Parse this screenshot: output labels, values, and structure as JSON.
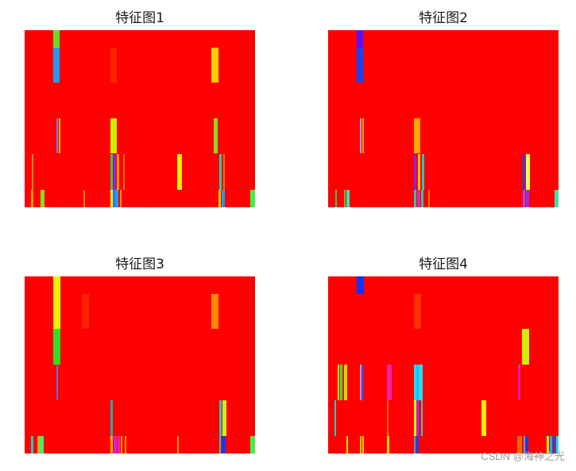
{
  "page": {
    "watermark": "CSDN @海神之光"
  },
  "chart_data": [
    {
      "type": "heatmap",
      "title": "特征图1",
      "xlim": [
        0,
        290
      ],
      "ylim": [
        0,
        223
      ],
      "background": "#ff0000",
      "cells": [
        {
          "x": 36,
          "y": 0,
          "w": 8,
          "h": 22,
          "c": "#66dd22"
        },
        {
          "x": 36,
          "y": 22,
          "w": 8,
          "h": 44,
          "c": "#2299ee"
        },
        {
          "x": 108,
          "y": 22,
          "w": 8,
          "h": 44,
          "c": "#ff2200"
        },
        {
          "x": 235,
          "y": 22,
          "w": 9,
          "h": 44,
          "c": "#ffcc00"
        },
        {
          "x": 40,
          "y": 111,
          "w": 2,
          "h": 44,
          "c": "#7777ff"
        },
        {
          "x": 43,
          "y": 111,
          "w": 2,
          "h": 44,
          "c": "#ffbb00"
        },
        {
          "x": 108,
          "y": 111,
          "w": 8,
          "h": 44,
          "c": "#ccee00"
        },
        {
          "x": 238,
          "y": 111,
          "w": 5,
          "h": 44,
          "c": "#88dd22"
        },
        {
          "x": 9,
          "y": 156,
          "w": 2,
          "h": 45,
          "c": "#ff8800"
        },
        {
          "x": 108,
          "y": 156,
          "w": 3,
          "h": 45,
          "c": "#22cc66"
        },
        {
          "x": 112,
          "y": 156,
          "w": 3,
          "h": 45,
          "c": "#8822ee"
        },
        {
          "x": 116,
          "y": 156,
          "w": 3,
          "h": 45,
          "c": "#ff9900"
        },
        {
          "x": 124,
          "y": 156,
          "w": 2,
          "h": 45,
          "c": "#ff6600"
        },
        {
          "x": 192,
          "y": 156,
          "w": 6,
          "h": 45,
          "c": "#ffee00"
        },
        {
          "x": 245,
          "y": 156,
          "w": 3,
          "h": 45,
          "c": "#22ccaa"
        },
        {
          "x": 250,
          "y": 156,
          "w": 2,
          "h": 45,
          "c": "#ff7700"
        },
        {
          "x": 8,
          "y": 201,
          "w": 3,
          "h": 22,
          "c": "#ff9900"
        },
        {
          "x": 20,
          "y": 201,
          "w": 5,
          "h": 22,
          "c": "#88dd22"
        },
        {
          "x": 74,
          "y": 201,
          "w": 2,
          "h": 22,
          "c": "#ff8800"
        },
        {
          "x": 108,
          "y": 201,
          "w": 3,
          "h": 22,
          "c": "#ffee00"
        },
        {
          "x": 111,
          "y": 201,
          "w": 3,
          "h": 22,
          "c": "#2277ff"
        },
        {
          "x": 114,
          "y": 201,
          "w": 4,
          "h": 22,
          "c": "#2299ff"
        },
        {
          "x": 120,
          "y": 201,
          "w": 2,
          "h": 22,
          "c": "#ff8800"
        },
        {
          "x": 244,
          "y": 201,
          "w": 3,
          "h": 22,
          "c": "#ffcc00"
        },
        {
          "x": 248,
          "y": 201,
          "w": 4,
          "h": 22,
          "c": "#2299ee"
        },
        {
          "x": 284,
          "y": 201,
          "w": 6,
          "h": 22,
          "c": "#44ee44"
        }
      ]
    },
    {
      "type": "heatmap",
      "title": "特征图2",
      "xlim": [
        0,
        290
      ],
      "ylim": [
        0,
        223
      ],
      "background": "#ff0000",
      "cells": [
        {
          "x": 36,
          "y": 0,
          "w": 8,
          "h": 22,
          "c": "#5511ff"
        },
        {
          "x": 36,
          "y": 22,
          "w": 8,
          "h": 44,
          "c": "#1144ff"
        },
        {
          "x": 40,
          "y": 111,
          "w": 2,
          "h": 44,
          "c": "#aaaaff"
        },
        {
          "x": 43,
          "y": 111,
          "w": 2,
          "h": 44,
          "c": "#ff9900"
        },
        {
          "x": 108,
          "y": 111,
          "w": 8,
          "h": 44,
          "c": "#ffaa00"
        },
        {
          "x": 108,
          "y": 156,
          "w": 3,
          "h": 45,
          "c": "#8822ee"
        },
        {
          "x": 113,
          "y": 156,
          "w": 3,
          "h": 45,
          "c": "#ffcc00"
        },
        {
          "x": 118,
          "y": 156,
          "w": 3,
          "h": 45,
          "c": "#22cccc"
        },
        {
          "x": 245,
          "y": 156,
          "w": 3,
          "h": 45,
          "c": "#2244ee"
        },
        {
          "x": 249,
          "y": 156,
          "w": 5,
          "h": 45,
          "c": "#eeff44"
        },
        {
          "x": 9,
          "y": 201,
          "w": 2,
          "h": 22,
          "c": "#22cc66"
        },
        {
          "x": 20,
          "y": 201,
          "w": 2,
          "h": 22,
          "c": "#44cc44"
        },
        {
          "x": 23,
          "y": 201,
          "w": 4,
          "h": 22,
          "c": "#44ddbb"
        },
        {
          "x": 108,
          "y": 201,
          "w": 3,
          "h": 22,
          "c": "#22ccaa"
        },
        {
          "x": 112,
          "y": 201,
          "w": 4,
          "h": 22,
          "c": "#ee22aa"
        },
        {
          "x": 117,
          "y": 201,
          "w": 3,
          "h": 22,
          "c": "#22ccaa"
        },
        {
          "x": 126,
          "y": 201,
          "w": 2,
          "h": 22,
          "c": "#ff7700"
        },
        {
          "x": 245,
          "y": 201,
          "w": 3,
          "h": 22,
          "c": "#aa44ee"
        },
        {
          "x": 249,
          "y": 201,
          "w": 4,
          "h": 22,
          "c": "#8833ee"
        },
        {
          "x": 285,
          "y": 201,
          "w": 5,
          "h": 22,
          "c": "#44ddaa"
        }
      ]
    },
    {
      "type": "heatmap",
      "title": "特征图3",
      "xlim": [
        0,
        290
      ],
      "ylim": [
        0,
        223
      ],
      "background": "#ff0000",
      "cells": [
        {
          "x": 36,
          "y": 0,
          "w": 9,
          "h": 66,
          "c": "#eeee00"
        },
        {
          "x": 36,
          "y": 66,
          "w": 9,
          "h": 45,
          "c": "#33dd22"
        },
        {
          "x": 72,
          "y": 22,
          "w": 9,
          "h": 44,
          "c": "#ff2200"
        },
        {
          "x": 235,
          "y": 22,
          "w": 9,
          "h": 44,
          "c": "#ff8800"
        },
        {
          "x": 40,
          "y": 111,
          "w": 2,
          "h": 44,
          "c": "#6666ee"
        },
        {
          "x": 108,
          "y": 156,
          "w": 3,
          "h": 45,
          "c": "#22aaaa"
        },
        {
          "x": 245,
          "y": 156,
          "w": 3,
          "h": 45,
          "c": "#22ccaa"
        },
        {
          "x": 249,
          "y": 156,
          "w": 5,
          "h": 45,
          "c": "#ccee22"
        },
        {
          "x": 8,
          "y": 201,
          "w": 3,
          "h": 22,
          "c": "#22cccc"
        },
        {
          "x": 16,
          "y": 201,
          "w": 2,
          "h": 22,
          "c": "#ff9900"
        },
        {
          "x": 18,
          "y": 201,
          "w": 6,
          "h": 22,
          "c": "#44ee66"
        },
        {
          "x": 108,
          "y": 201,
          "w": 3,
          "h": 22,
          "c": "#ffaa00"
        },
        {
          "x": 112,
          "y": 201,
          "w": 4,
          "h": 22,
          "c": "#cc22ee"
        },
        {
          "x": 117,
          "y": 201,
          "w": 3,
          "h": 22,
          "c": "#ee22aa"
        },
        {
          "x": 121,
          "y": 201,
          "w": 2,
          "h": 22,
          "c": "#ff9900"
        },
        {
          "x": 126,
          "y": 201,
          "w": 2,
          "h": 22,
          "c": "#ff9900"
        },
        {
          "x": 192,
          "y": 201,
          "w": 2,
          "h": 22,
          "c": "#ff9900"
        },
        {
          "x": 245,
          "y": 201,
          "w": 2,
          "h": 22,
          "c": "#22ccaa"
        },
        {
          "x": 248,
          "y": 201,
          "w": 5,
          "h": 22,
          "c": "#2233ee"
        },
        {
          "x": 284,
          "y": 201,
          "w": 6,
          "h": 22,
          "c": "#44ee44"
        }
      ]
    },
    {
      "type": "heatmap",
      "title": "特征图4",
      "xlim": [
        0,
        290
      ],
      "ylim": [
        0,
        223
      ],
      "background": "#ff0000",
      "cells": [
        {
          "x": 36,
          "y": 0,
          "w": 9,
          "h": 22,
          "c": "#1133ff"
        },
        {
          "x": 108,
          "y": 22,
          "w": 9,
          "h": 44,
          "c": "#ff3300"
        },
        {
          "x": 244,
          "y": 66,
          "w": 9,
          "h": 45,
          "c": "#ccee11"
        },
        {
          "x": 12,
          "y": 111,
          "w": 2,
          "h": 45,
          "c": "#eeee00"
        },
        {
          "x": 15,
          "y": 111,
          "w": 3,
          "h": 45,
          "c": "#44dd44"
        },
        {
          "x": 20,
          "y": 111,
          "w": 4,
          "h": 45,
          "c": "#ccdd00"
        },
        {
          "x": 40,
          "y": 111,
          "w": 2,
          "h": 45,
          "c": "#aaaaff"
        },
        {
          "x": 43,
          "y": 111,
          "w": 2,
          "h": 45,
          "c": "#4444ee"
        },
        {
          "x": 74,
          "y": 111,
          "w": 6,
          "h": 45,
          "c": "#ee22aa"
        },
        {
          "x": 108,
          "y": 111,
          "w": 3,
          "h": 45,
          "c": "#22ddee"
        },
        {
          "x": 111,
          "y": 111,
          "w": 3,
          "h": 45,
          "c": "#22bbee"
        },
        {
          "x": 114,
          "y": 111,
          "w": 5,
          "h": 45,
          "c": "#22ddee"
        },
        {
          "x": 239,
          "y": 111,
          "w": 3,
          "h": 45,
          "c": "#ee22aa"
        },
        {
          "x": 8,
          "y": 156,
          "w": 2,
          "h": 45,
          "c": "#22cccc"
        },
        {
          "x": 74,
          "y": 156,
          "w": 2,
          "h": 45,
          "c": "#ff7700"
        },
        {
          "x": 108,
          "y": 156,
          "w": 3,
          "h": 45,
          "c": "#ffee00"
        },
        {
          "x": 111,
          "y": 156,
          "w": 3,
          "h": 45,
          "c": "#aa22ee"
        },
        {
          "x": 117,
          "y": 156,
          "w": 2,
          "h": 45,
          "c": "#22cccc"
        },
        {
          "x": 193,
          "y": 156,
          "w": 6,
          "h": 45,
          "c": "#ffee00"
        },
        {
          "x": 23,
          "y": 201,
          "w": 2,
          "h": 22,
          "c": "#ccee00"
        },
        {
          "x": 40,
          "y": 201,
          "w": 2,
          "h": 22,
          "c": "#ffcc00"
        },
        {
          "x": 43,
          "y": 201,
          "w": 2,
          "h": 22,
          "c": "#ffcc00"
        },
        {
          "x": 74,
          "y": 201,
          "w": 3,
          "h": 22,
          "c": "#ffdd00"
        },
        {
          "x": 108,
          "y": 201,
          "w": 2,
          "h": 22,
          "c": "#22aaee"
        },
        {
          "x": 111,
          "y": 201,
          "w": 3,
          "h": 22,
          "c": "#1144ee"
        },
        {
          "x": 238,
          "y": 201,
          "w": 6,
          "h": 22,
          "c": "#ff6600"
        },
        {
          "x": 246,
          "y": 201,
          "w": 2,
          "h": 22,
          "c": "#22bbee"
        },
        {
          "x": 249,
          "y": 201,
          "w": 3,
          "h": 22,
          "c": "#2233ee"
        },
        {
          "x": 275,
          "y": 201,
          "w": 3,
          "h": 22,
          "c": "#ccee22"
        },
        {
          "x": 279,
          "y": 201,
          "w": 3,
          "h": 22,
          "c": "#22aaee"
        },
        {
          "x": 283,
          "y": 201,
          "w": 3,
          "h": 22,
          "c": "#2244ee"
        },
        {
          "x": 287,
          "y": 201,
          "w": 3,
          "h": 22,
          "c": "#22ddee"
        }
      ]
    }
  ]
}
